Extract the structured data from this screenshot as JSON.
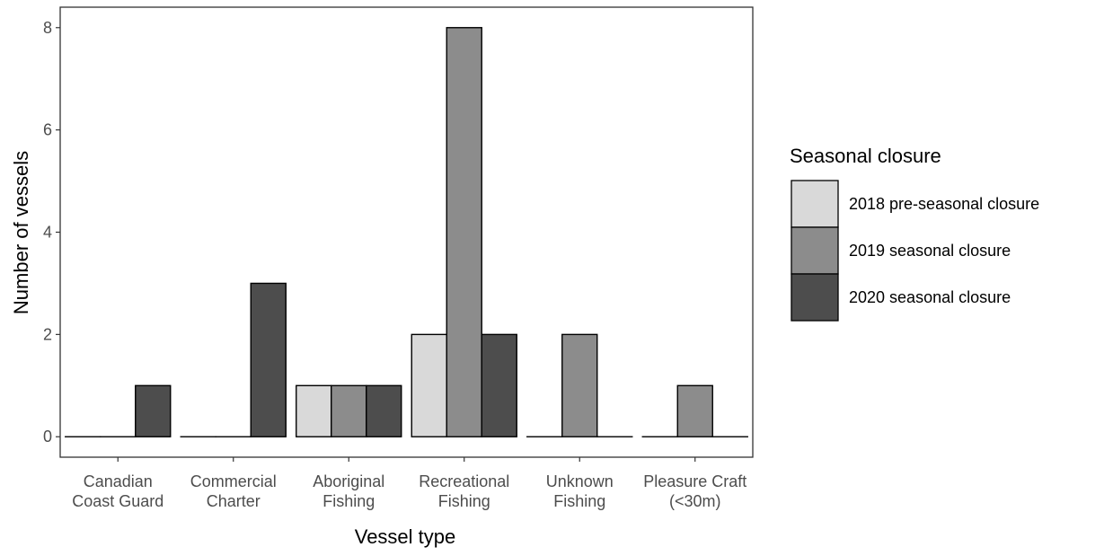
{
  "chart_data": {
    "type": "bar",
    "title": "",
    "xlabel": "Vessel type",
    "ylabel": "Number of vessels",
    "ylim": [
      -0.4,
      8.4
    ],
    "yticks": [
      0,
      2,
      4,
      6,
      8
    ],
    "grid": false,
    "legend_position": "right",
    "legend_title": "Seasonal closure",
    "categories": [
      [
        "Canadian",
        "Coast Guard"
      ],
      [
        "Commercial",
        "Charter"
      ],
      [
        "Aboriginal",
        "Fishing"
      ],
      [
        "Recreational",
        "Fishing"
      ],
      [
        "Unknown",
        "Fishing"
      ],
      [
        "Pleasure Craft",
        "(<30m)"
      ]
    ],
    "series": [
      {
        "name": "2018 pre-seasonal closure",
        "color": "#d9d9d9",
        "values": [
          0,
          0,
          1,
          2,
          0,
          0
        ]
      },
      {
        "name": "2019 seasonal closure",
        "color": "#8c8c8c",
        "values": [
          0,
          0,
          1,
          8,
          2,
          1
        ]
      },
      {
        "name": "2020 seasonal closure",
        "color": "#4d4d4d",
        "values": [
          1,
          3,
          1,
          2,
          0,
          0
        ]
      }
    ]
  }
}
